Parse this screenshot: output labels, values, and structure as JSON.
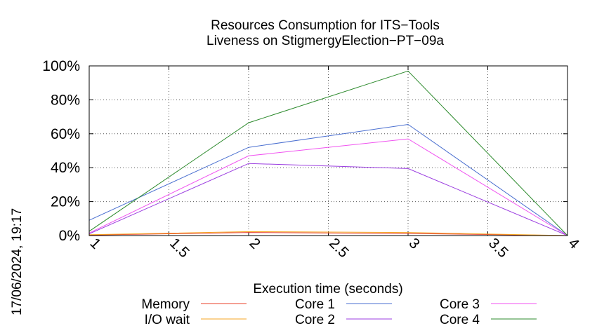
{
  "chart_data": {
    "type": "line",
    "title": "Resources Consumption for ITS−Tools",
    "subtitle": "Liveness on StigmergyElection−PT−09a",
    "xlabel": "Execution time (seconds)",
    "ylabel": "",
    "timestamp": "17/06/2024, 19:17",
    "xlim": [
      1,
      4
    ],
    "ylim": [
      0,
      100
    ],
    "x_ticks": [
      "1",
      "1.5",
      "2",
      "2.5",
      "3",
      "3.5",
      "4"
    ],
    "y_ticks": [
      "0%",
      "20%",
      "40%",
      "60%",
      "80%",
      "100%"
    ],
    "grid": true,
    "legend_position": "bottom",
    "x": [
      1,
      2,
      3,
      4
    ],
    "series": [
      {
        "name": "Memory",
        "color": "#e8402a",
        "values": [
          0.3,
          1.8,
          1.2,
          0.0
        ]
      },
      {
        "name": "I/O wait",
        "color": "#f5a623",
        "values": [
          0.5,
          2.3,
          1.8,
          0.0
        ]
      },
      {
        "name": "Core 1",
        "color": "#4a6fd0",
        "values": [
          9.0,
          52.0,
          65.5,
          0.0
        ]
      },
      {
        "name": "Core 2",
        "color": "#9b3de0",
        "values": [
          1.0,
          42.5,
          39.5,
          0.0
        ]
      },
      {
        "name": "Core 3",
        "color": "#f052f0",
        "values": [
          1.5,
          47.0,
          57.0,
          0.0
        ]
      },
      {
        "name": "Core 4",
        "color": "#2e8b2e",
        "values": [
          2.5,
          66.5,
          97.0,
          0.0
        ]
      }
    ]
  }
}
